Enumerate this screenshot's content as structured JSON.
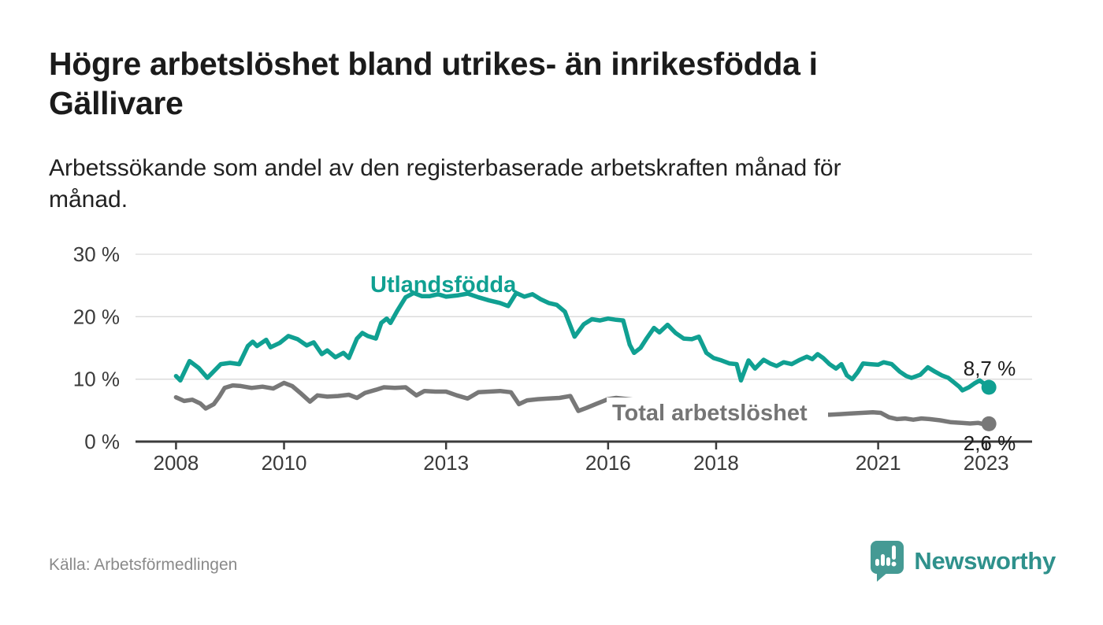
{
  "header": {
    "title": "Högre arbetslöshet bland utrikes- än inrikesfödda i\nGällivare",
    "subtitle": "Arbetssökande som andel av den registerbaserade arbetskraften månad för\nmånad."
  },
  "footer": {
    "source": "Källa: Arbetsförmedlingen",
    "brand": "Newsworthy"
  },
  "colors": {
    "accent_teal": "#10a092",
    "series_gray": "#787878",
    "gray_label": "#757575",
    "value_label": "#1c1c1c",
    "grid": "#d9d9d9",
    "axis_line": "#3b3b3b",
    "axis_text": "#3a3a3a",
    "logo_teal": "#459a94",
    "logo_text_teal": "#2f918c",
    "source_text": "#8a8a8a"
  },
  "chart_data": {
    "type": "line",
    "title": "Högre arbetslöshet bland utrikes- än inrikesfödda i Gällivare",
    "subtitle": "Arbetssökande som andel av den registerbaserade arbetskraften månad för månad.",
    "source": "Källa: Arbetsförmedlingen",
    "x_unit": "decimal_year",
    "y_unit": "percent",
    "xlim": [
      2007.25,
      2023.85
    ],
    "ylim": [
      0,
      30
    ],
    "grid": "horizontal",
    "legend_position": "inline-annotations",
    "x_ticks": [
      {
        "value": 2008,
        "label": "2008"
      },
      {
        "value": 2010,
        "label": "2010"
      },
      {
        "value": 2013,
        "label": "2013"
      },
      {
        "value": 2016,
        "label": "2016"
      },
      {
        "value": 2018,
        "label": "2018"
      },
      {
        "value": 2021,
        "label": "2021"
      },
      {
        "value": 2023,
        "label": "2023"
      }
    ],
    "y_ticks": [
      {
        "value": 0,
        "label": "0 %"
      },
      {
        "value": 10,
        "label": "10 %"
      },
      {
        "value": 20,
        "label": "20 %"
      },
      {
        "value": 30,
        "label": "30 %"
      }
    ],
    "series": [
      {
        "name": "Utlandsfödda",
        "color": "#10a092",
        "end_label": "8,7 %",
        "end_value": 8.7,
        "points": [
          [
            2008.0,
            10.5
          ],
          [
            2008.08,
            9.8
          ],
          [
            2008.25,
            12.9
          ],
          [
            2008.42,
            11.8
          ],
          [
            2008.58,
            10.2
          ],
          [
            2008.83,
            12.4
          ],
          [
            2009.0,
            12.6
          ],
          [
            2009.17,
            12.4
          ],
          [
            2009.33,
            15.3
          ],
          [
            2009.42,
            16.0
          ],
          [
            2009.5,
            15.3
          ],
          [
            2009.67,
            16.3
          ],
          [
            2009.75,
            15.1
          ],
          [
            2009.92,
            15.8
          ],
          [
            2010.08,
            16.9
          ],
          [
            2010.25,
            16.4
          ],
          [
            2010.42,
            15.4
          ],
          [
            2010.55,
            15.9
          ],
          [
            2010.7,
            14.0
          ],
          [
            2010.8,
            14.6
          ],
          [
            2010.95,
            13.5
          ],
          [
            2011.1,
            14.2
          ],
          [
            2011.2,
            13.4
          ],
          [
            2011.35,
            16.5
          ],
          [
            2011.45,
            17.4
          ],
          [
            2011.55,
            16.9
          ],
          [
            2011.7,
            16.5
          ],
          [
            2011.8,
            19.0
          ],
          [
            2011.9,
            19.7
          ],
          [
            2011.97,
            19.0
          ],
          [
            2012.1,
            21.0
          ],
          [
            2012.25,
            23.1
          ],
          [
            2012.4,
            23.8
          ],
          [
            2012.55,
            23.3
          ],
          [
            2012.7,
            23.3
          ],
          [
            2012.85,
            23.6
          ],
          [
            2013.0,
            23.2
          ],
          [
            2013.2,
            23.4
          ],
          [
            2013.4,
            23.7
          ],
          [
            2013.6,
            23.1
          ],
          [
            2013.8,
            22.6
          ],
          [
            2014.0,
            22.2
          ],
          [
            2014.15,
            21.7
          ],
          [
            2014.3,
            23.8
          ],
          [
            2014.45,
            23.2
          ],
          [
            2014.6,
            23.6
          ],
          [
            2014.75,
            22.8
          ],
          [
            2014.9,
            22.2
          ],
          [
            2015.05,
            21.9
          ],
          [
            2015.2,
            20.8
          ],
          [
            2015.38,
            16.8
          ],
          [
            2015.55,
            18.8
          ],
          [
            2015.7,
            19.6
          ],
          [
            2015.85,
            19.4
          ],
          [
            2016.0,
            19.7
          ],
          [
            2016.15,
            19.5
          ],
          [
            2016.28,
            19.4
          ],
          [
            2016.4,
            15.5
          ],
          [
            2016.48,
            14.2
          ],
          [
            2016.6,
            15.0
          ],
          [
            2016.72,
            16.6
          ],
          [
            2016.85,
            18.2
          ],
          [
            2016.95,
            17.5
          ],
          [
            2017.1,
            18.7
          ],
          [
            2017.25,
            17.4
          ],
          [
            2017.4,
            16.5
          ],
          [
            2017.55,
            16.4
          ],
          [
            2017.68,
            16.8
          ],
          [
            2017.82,
            14.2
          ],
          [
            2017.95,
            13.4
          ],
          [
            2018.1,
            13.0
          ],
          [
            2018.25,
            12.5
          ],
          [
            2018.38,
            12.4
          ],
          [
            2018.46,
            9.8
          ],
          [
            2018.6,
            13.0
          ],
          [
            2018.72,
            11.7
          ],
          [
            2018.88,
            13.1
          ],
          [
            2019.0,
            12.5
          ],
          [
            2019.12,
            12.1
          ],
          [
            2019.25,
            12.7
          ],
          [
            2019.4,
            12.4
          ],
          [
            2019.55,
            13.1
          ],
          [
            2019.68,
            13.6
          ],
          [
            2019.78,
            13.2
          ],
          [
            2019.88,
            14.0
          ],
          [
            2019.98,
            13.4
          ],
          [
            2020.1,
            12.4
          ],
          [
            2020.22,
            11.7
          ],
          [
            2020.32,
            12.4
          ],
          [
            2020.42,
            10.6
          ],
          [
            2020.52,
            10.0
          ],
          [
            2020.62,
            11.1
          ],
          [
            2020.72,
            12.5
          ],
          [
            2020.85,
            12.4
          ],
          [
            2021.0,
            12.3
          ],
          [
            2021.1,
            12.7
          ],
          [
            2021.25,
            12.4
          ],
          [
            2021.4,
            11.2
          ],
          [
            2021.52,
            10.5
          ],
          [
            2021.62,
            10.2
          ],
          [
            2021.78,
            10.7
          ],
          [
            2021.92,
            11.9
          ],
          [
            2022.05,
            11.2
          ],
          [
            2022.18,
            10.6
          ],
          [
            2022.3,
            10.2
          ],
          [
            2022.4,
            9.5
          ],
          [
            2022.5,
            8.8
          ],
          [
            2022.56,
            8.2
          ],
          [
            2022.68,
            8.7
          ],
          [
            2022.78,
            9.3
          ],
          [
            2022.88,
            9.8
          ],
          [
            2023.05,
            8.7
          ]
        ]
      },
      {
        "name": "Total arbetslöshet",
        "color": "#787878",
        "end_label": "2,6 %",
        "end_value": 2.6,
        "points": [
          [
            2008.0,
            7.1
          ],
          [
            2008.15,
            6.5
          ],
          [
            2008.3,
            6.7
          ],
          [
            2008.45,
            6.1
          ],
          [
            2008.55,
            5.3
          ],
          [
            2008.7,
            6.0
          ],
          [
            2008.8,
            7.2
          ],
          [
            2008.9,
            8.6
          ],
          [
            2009.05,
            9.0
          ],
          [
            2009.2,
            8.9
          ],
          [
            2009.4,
            8.6
          ],
          [
            2009.6,
            8.8
          ],
          [
            2009.8,
            8.5
          ],
          [
            2010.0,
            9.4
          ],
          [
            2010.15,
            8.9
          ],
          [
            2010.3,
            7.8
          ],
          [
            2010.48,
            6.4
          ],
          [
            2010.62,
            7.4
          ],
          [
            2010.8,
            7.2
          ],
          [
            2011.0,
            7.3
          ],
          [
            2011.2,
            7.5
          ],
          [
            2011.35,
            7.0
          ],
          [
            2011.5,
            7.8
          ],
          [
            2011.7,
            8.3
          ],
          [
            2011.85,
            8.7
          ],
          [
            2012.05,
            8.6
          ],
          [
            2012.25,
            8.7
          ],
          [
            2012.45,
            7.4
          ],
          [
            2012.6,
            8.1
          ],
          [
            2012.8,
            8.0
          ],
          [
            2013.0,
            8.0
          ],
          [
            2013.2,
            7.4
          ],
          [
            2013.4,
            6.9
          ],
          [
            2013.6,
            7.9
          ],
          [
            2013.8,
            8.0
          ],
          [
            2014.0,
            8.1
          ],
          [
            2014.2,
            7.9
          ],
          [
            2014.35,
            6.0
          ],
          [
            2014.5,
            6.6
          ],
          [
            2014.7,
            6.8
          ],
          [
            2014.9,
            6.9
          ],
          [
            2015.1,
            7.0
          ],
          [
            2015.3,
            7.3
          ],
          [
            2015.45,
            4.9
          ],
          [
            2015.6,
            5.4
          ],
          [
            2015.8,
            6.1
          ],
          [
            2016.0,
            6.8
          ],
          [
            2016.15,
            7.0
          ],
          [
            2017.0,
            6.2
          ],
          [
            2018.0,
            5.3
          ],
          [
            2019.0,
            4.7
          ],
          [
            2020.1,
            4.3
          ],
          [
            2020.3,
            4.4
          ],
          [
            2020.5,
            4.5
          ],
          [
            2020.7,
            4.6
          ],
          [
            2020.9,
            4.7
          ],
          [
            2021.05,
            4.6
          ],
          [
            2021.2,
            3.9
          ],
          [
            2021.35,
            3.6
          ],
          [
            2021.5,
            3.7
          ],
          [
            2021.65,
            3.5
          ],
          [
            2021.8,
            3.7
          ],
          [
            2021.95,
            3.6
          ],
          [
            2022.15,
            3.4
          ],
          [
            2022.35,
            3.1
          ],
          [
            2022.55,
            3.0
          ],
          [
            2022.7,
            2.9
          ],
          [
            2022.85,
            3.0
          ],
          [
            2023.05,
            2.6
          ]
        ]
      }
    ]
  }
}
